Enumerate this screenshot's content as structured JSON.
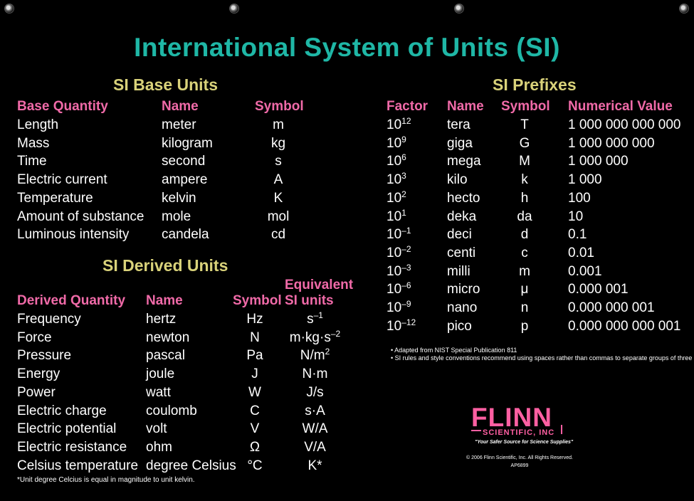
{
  "title": "International System of Units (SI)",
  "base": {
    "heading": "SI Base Units",
    "headers": [
      "Base Quantity",
      "Name",
      "Symbol"
    ],
    "rows": [
      [
        "Length",
        "meter",
        "m"
      ],
      [
        "Mass",
        "kilogram",
        "kg"
      ],
      [
        "Time",
        "second",
        "s"
      ],
      [
        "Electric current",
        "ampere",
        "A"
      ],
      [
        "Temperature",
        "kelvin",
        "K"
      ],
      [
        "Amount of substance",
        "mole",
        "mol"
      ],
      [
        "Luminous intensity",
        "candela",
        "cd"
      ]
    ]
  },
  "derived": {
    "heading": "SI Derived Units",
    "headers": [
      "Derived Quantity",
      "Name",
      "Symbol",
      "Equivalent",
      "SI units"
    ],
    "rows": [
      {
        "q": "Frequency",
        "n": "hertz",
        "s": "Hz",
        "e": "s",
        "e_sup": "–1"
      },
      {
        "q": "Force",
        "n": "newton",
        "s": "N",
        "e": "m·kg·s",
        "e_sup": "–2"
      },
      {
        "q": "Pressure",
        "n": "pascal",
        "s": "Pa",
        "e": "N/m",
        "e_sup": "2"
      },
      {
        "q": "Energy",
        "n": "joule",
        "s": "J",
        "e": "N·m",
        "e_sup": ""
      },
      {
        "q": "Power",
        "n": "watt",
        "s": "W",
        "e": "J/s",
        "e_sup": ""
      },
      {
        "q": "Electric charge",
        "n": "coulomb",
        "s": "C",
        "e": "s·A",
        "e_sup": ""
      },
      {
        "q": "Electric potential",
        "n": "volt",
        "s": "V",
        "e": "W/A",
        "e_sup": ""
      },
      {
        "q": "Electric resistance",
        "n": "ohm",
        "s": "Ω",
        "e": "V/A",
        "e_sup": ""
      },
      {
        "q": "Celsius temperature",
        "n": "degree Celsius",
        "s": "°C",
        "e": "K*",
        "e_sup": ""
      }
    ],
    "footnote": "*Unit degree Celcius is equal in magnitude to unit kelvin."
  },
  "prefixes": {
    "heading": "SI Prefixes",
    "headers": [
      "Factor",
      "Name",
      "Symbol",
      "Numerical Value"
    ],
    "rows": [
      {
        "base": "10",
        "exp": "12",
        "name": "tera",
        "sym": "T",
        "val": "1 000 000 000 000"
      },
      {
        "base": "10",
        "exp": "9",
        "name": "giga",
        "sym": "G",
        "val": "1 000 000 000"
      },
      {
        "base": "10",
        "exp": "6",
        "name": "mega",
        "sym": "M",
        "val": "1 000 000"
      },
      {
        "base": "10",
        "exp": "3",
        "name": "kilo",
        "sym": "k",
        "val": "1 000"
      },
      {
        "base": "10",
        "exp": "2",
        "name": "hecto",
        "sym": "h",
        "val": "100"
      },
      {
        "base": "10",
        "exp": "1",
        "name": "deka",
        "sym": "da",
        "val": "10"
      },
      {
        "base": "10",
        "exp": "–1",
        "name": "deci",
        "sym": "d",
        "val": "0.1"
      },
      {
        "base": "10",
        "exp": "–2",
        "name": "centi",
        "sym": "c",
        "val": "0.01"
      },
      {
        "base": "10",
        "exp": "–3",
        "name": "milli",
        "sym": "m",
        "val": "0.001"
      },
      {
        "base": "10",
        "exp": "–6",
        "name": "micro",
        "sym": "μ",
        "val": "0.000 001"
      },
      {
        "base": "10",
        "exp": "–9",
        "name": "nano",
        "sym": "n",
        "val": "0.000 000 001"
      },
      {
        "base": "10",
        "exp": "–12",
        "name": "pico",
        "sym": "p",
        "val": "0.000 000 000 001"
      }
    ],
    "notes": [
      "• Adapted from NIST Special Publication 811",
      "• SI rules and style conventions recommend using spaces rather than commas to separate groups of three digits."
    ]
  },
  "logo": {
    "name": "FLINN",
    "sub": "SCIENTIFIC, INC",
    "tagline": "\"Your Safer Source for Science Supplies\"",
    "copyright": "© 2006 Flinn Scientific, Inc. All Rights Reserved.",
    "code": "AP6899"
  }
}
